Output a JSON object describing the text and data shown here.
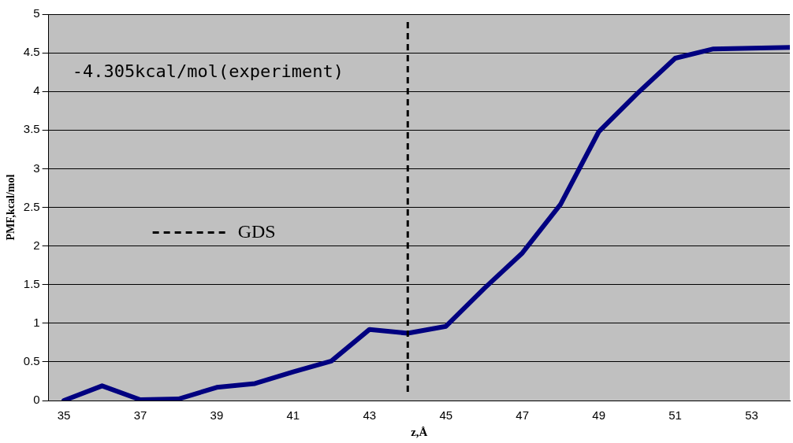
{
  "chart_data": {
    "type": "line",
    "xlabel": "z,Å",
    "ylabel": "PMF,kcal/mol",
    "x": [
      35,
      36,
      37,
      38,
      39,
      40,
      41,
      42,
      43,
      44,
      45,
      46,
      47,
      48,
      49,
      50,
      51,
      52,
      53,
      54
    ],
    "series": [
      {
        "color": "#000080",
        "values": [
          0,
          0.19,
          0.01,
          0.02,
          0.17,
          0.22,
          0.37,
          0.51,
          0.92,
          0.87,
          0.96,
          1.45,
          1.91,
          2.54,
          3.48,
          3.97,
          4.43,
          4.55,
          4.56,
          4.57
        ]
      }
    ],
    "xlim": [
      34.6,
      54
    ],
    "xticks": [
      35,
      37,
      39,
      41,
      43,
      45,
      47,
      49,
      51,
      53
    ],
    "ylim": [
      0,
      5
    ],
    "yticks": [
      0,
      0.5,
      1,
      1.5,
      2,
      2.5,
      3,
      3.5,
      4,
      4.5,
      5
    ],
    "grid": "y",
    "marker": "none",
    "line_style": "solid",
    "legend": false,
    "ref_lines": [
      {
        "axis": "x",
        "value": 44,
        "label": "GDS",
        "line_style": "dashed",
        "color": "#000000"
      }
    ],
    "annotations": [
      "-4.305kcal/mol(experiment)"
    ]
  }
}
